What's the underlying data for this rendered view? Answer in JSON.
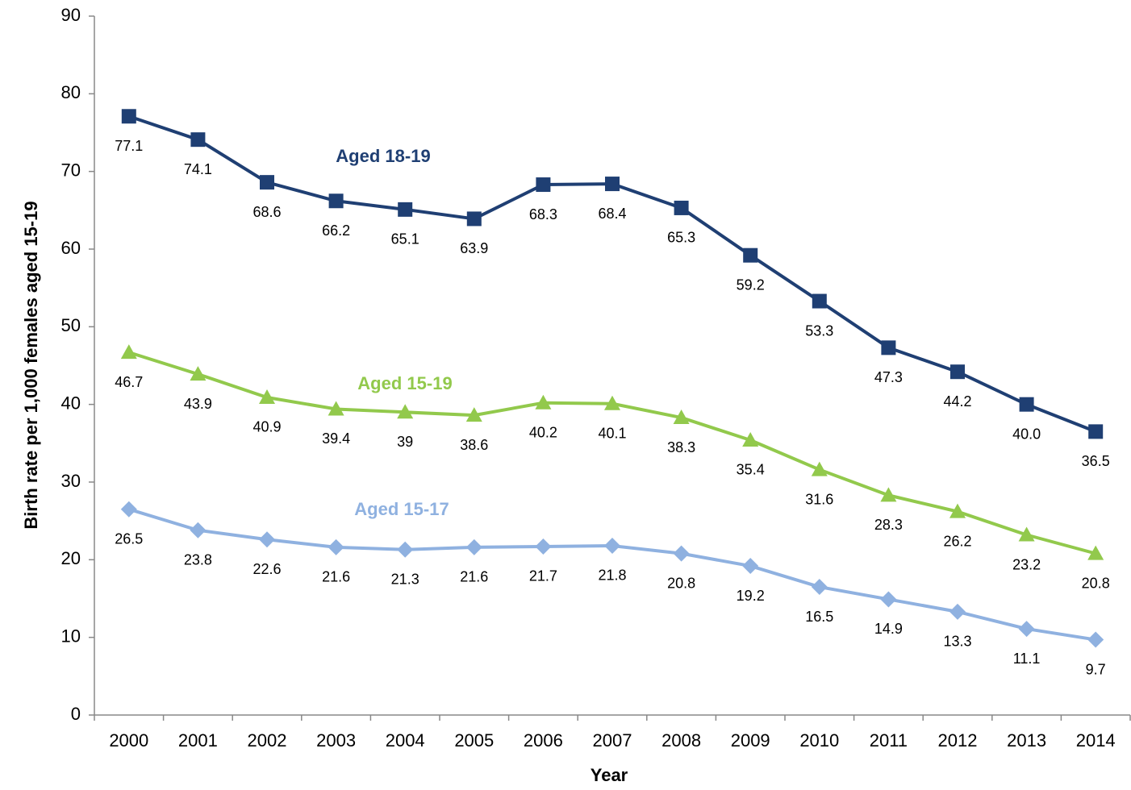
{
  "chart_data": {
    "type": "line",
    "x_label": "Year",
    "y_label": "Birth rate per 1,000 females aged 15-19",
    "categories": [
      "2000",
      "2001",
      "2002",
      "2003",
      "2004",
      "2005",
      "2006",
      "2007",
      "2008",
      "2009",
      "2010",
      "2011",
      "2012",
      "2013",
      "2014"
    ],
    "ylim": [
      0,
      90
    ],
    "yticks": [
      0,
      10,
      20,
      30,
      40,
      50,
      60,
      70,
      80,
      90
    ],
    "series": [
      {
        "name": "Aged 18-19",
        "color": "#1f3f73",
        "marker": "square",
        "values": [
          77.1,
          74.1,
          68.6,
          66.2,
          65.1,
          63.9,
          68.3,
          68.4,
          65.3,
          59.2,
          53.3,
          47.3,
          44.2,
          40.0,
          36.5
        ],
        "value_labels": [
          "77.1",
          "74.1",
          "68.6",
          "66.2",
          "65.1",
          "63.9",
          "68.3",
          "68.4",
          "65.3",
          "59.2",
          "53.3",
          "47.3",
          "44.2",
          "40.0",
          "36.5"
        ]
      },
      {
        "name": "Aged 15-19",
        "color": "#92c94c",
        "marker": "triangle",
        "values": [
          46.7,
          43.9,
          40.9,
          39.4,
          39,
          38.6,
          40.2,
          40.1,
          38.3,
          35.4,
          31.6,
          28.3,
          26.2,
          23.2,
          20.8
        ],
        "value_labels": [
          "46.7",
          "43.9",
          "40.9",
          "39.4",
          "39",
          "38.6",
          "40.2",
          "40.1",
          "38.3",
          "35.4",
          "31.6",
          "28.3",
          "26.2",
          "23.2",
          "20.8"
        ]
      },
      {
        "name": "Aged 15-17",
        "color": "#8fb1e0",
        "marker": "diamond",
        "values": [
          26.5,
          23.8,
          22.6,
          21.6,
          21.3,
          21.6,
          21.7,
          21.8,
          20.8,
          19.2,
          16.5,
          14.9,
          13.3,
          11.1,
          9.7
        ],
        "value_labels": [
          "26.5",
          "23.8",
          "22.6",
          "21.6",
          "21.3",
          "21.6",
          "21.7",
          "21.8",
          "20.8",
          "19.2",
          "16.5",
          "14.9",
          "13.3",
          "11.1",
          "9.7"
        ]
      }
    ]
  }
}
